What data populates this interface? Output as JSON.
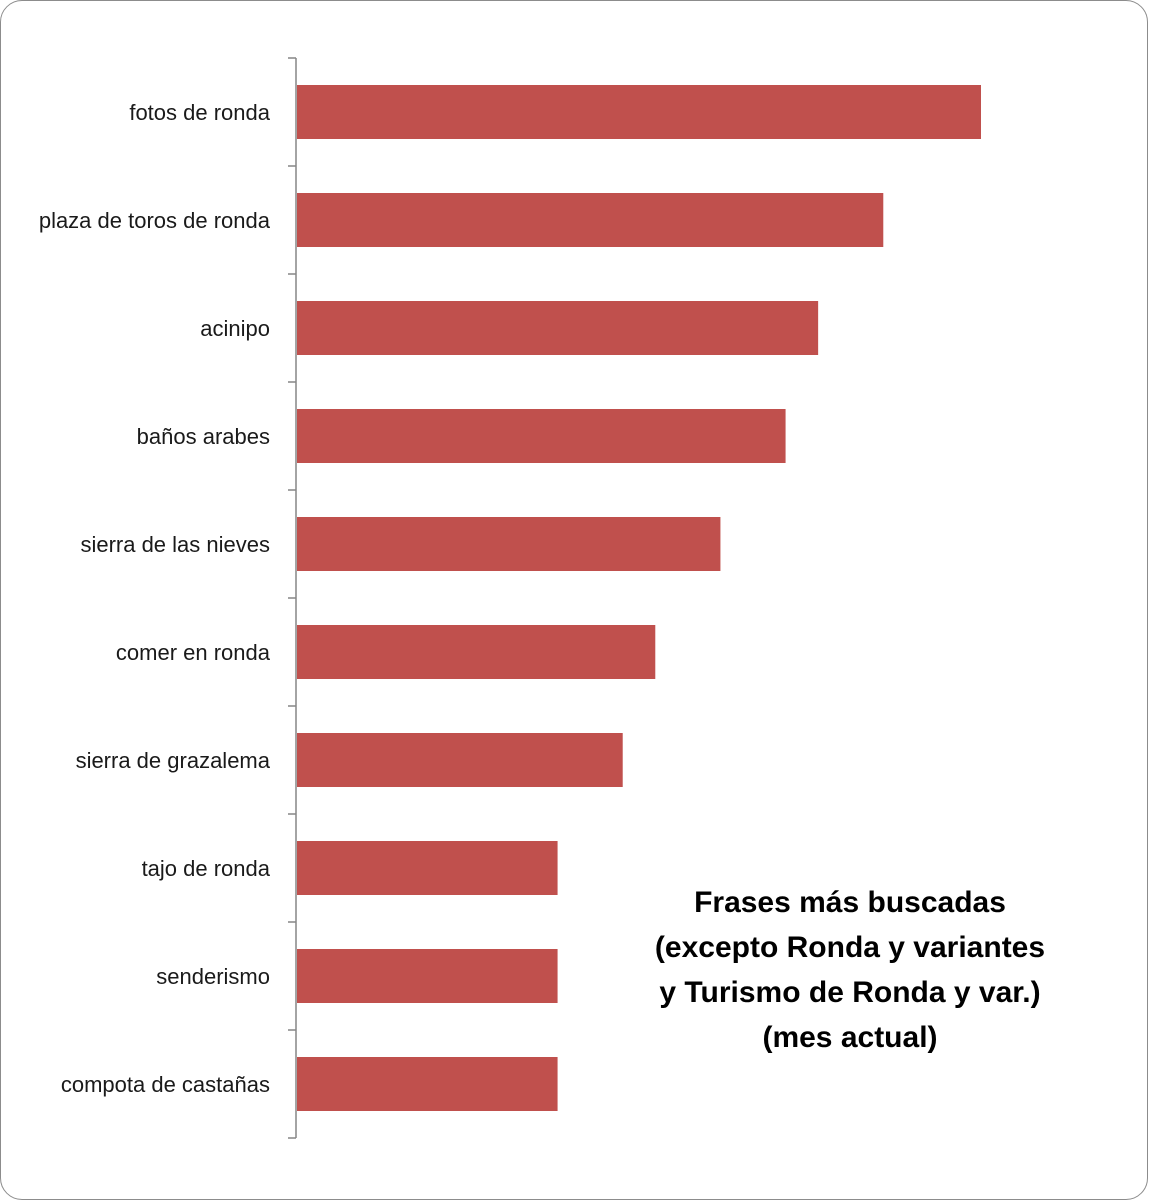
{
  "chart_data": {
    "type": "bar",
    "orientation": "horizontal",
    "categories": [
      "fotos de ronda",
      "plaza de toros de ronda",
      "acinipo",
      "baños arabes",
      "sierra de las nieves",
      "comer en ronda",
      "sierra de grazalema",
      "tajo de ronda",
      "senderismo",
      "compota de castañas"
    ],
    "values": [
      21,
      18,
      16,
      15,
      13,
      11,
      10,
      8,
      8,
      8
    ],
    "title_lines": [
      "Frases más buscadas",
      "(excepto Ronda y variantes",
      "y Turismo de Ronda y var.)",
      "(mes actual)"
    ],
    "xlabel": "",
    "ylabel": "",
    "xlim": [
      0,
      21
    ],
    "grid": false,
    "legend": "none",
    "colors": {
      "bar": "#c0504d",
      "axis": "#868686"
    }
  }
}
